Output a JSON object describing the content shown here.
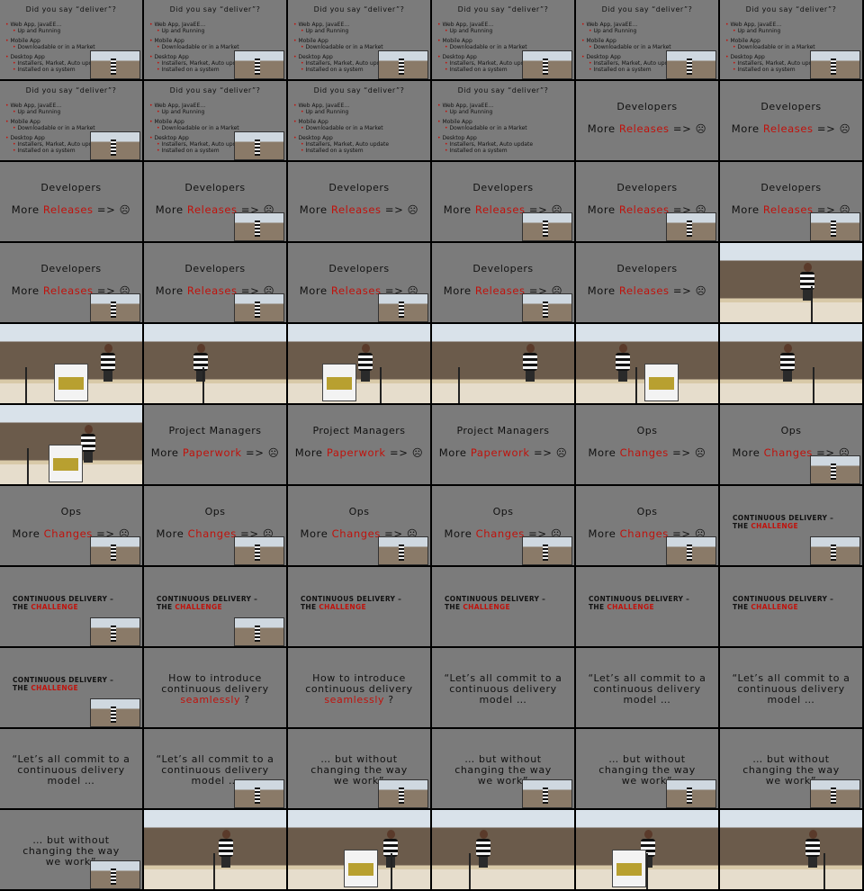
{
  "deliver": {
    "title": "Did you say “deliver”?",
    "items": [
      {
        "text": "Web App, JavaEE…",
        "level": "top"
      },
      {
        "text": "Up and Running",
        "level": "sub"
      },
      {
        "text": "Mobile App",
        "level": "top"
      },
      {
        "text": "Downloadable or in a Market",
        "level": "sub"
      },
      {
        "text": "Desktop App",
        "level": "top"
      },
      {
        "text": "Installers, Market, Auto update",
        "level": "sub"
      },
      {
        "text": "Installed on a system",
        "level": "sub"
      }
    ]
  },
  "developers": {
    "title": "Developers",
    "more": "More",
    "word": "Releases",
    "tail": "=> ☹"
  },
  "pm": {
    "title": "Project Managers",
    "more": "More",
    "word": "Paperwork",
    "tail": "=> ☹"
  },
  "ops": {
    "title": "Ops",
    "more": "More",
    "word": "Changes",
    "tail": "=> ☹"
  },
  "challenge": {
    "line1": "CONTINUOUS DELIVERY –",
    "line2a": "THE",
    "line2b": "CHALLENGE"
  },
  "introduce": {
    "l1": "How to introduce",
    "l2": "continuous delivery",
    "l3a": "seamlessly",
    "l3b": "?"
  },
  "commit": {
    "l1": "“Let’s all commit to a",
    "l2": "continuous delivery",
    "l3": "model …"
  },
  "without": {
    "l1": "… but without",
    "l2": "changing the way",
    "l3": "we work”"
  },
  "colors": {
    "slide_bg": "#7b7b7b",
    "accent": "#c0120c",
    "separator": "#000000"
  },
  "cells": [
    {
      "type": "deliver",
      "inset": true
    },
    {
      "type": "deliver",
      "inset": true
    },
    {
      "type": "deliver",
      "inset": true
    },
    {
      "type": "deliver",
      "inset": true
    },
    {
      "type": "deliver",
      "inset": true
    },
    {
      "type": "deliver",
      "inset": true
    },
    {
      "type": "deliver",
      "inset": true
    },
    {
      "type": "deliver",
      "inset": true
    },
    {
      "type": "deliver"
    },
    {
      "type": "deliver"
    },
    {
      "type": "developers"
    },
    {
      "type": "developers"
    },
    {
      "type": "developers"
    },
    {
      "type": "developers",
      "inset": true
    },
    {
      "type": "developers"
    },
    {
      "type": "developers",
      "inset": true
    },
    {
      "type": "developers",
      "inset": true
    },
    {
      "type": "developers",
      "inset": true
    },
    {
      "type": "developers",
      "inset": true
    },
    {
      "type": "developers",
      "inset": true
    },
    {
      "type": "developers",
      "inset": true
    },
    {
      "type": "developers",
      "inset": true
    },
    {
      "type": "developers"
    },
    {
      "type": "photo"
    },
    {
      "type": "photo"
    },
    {
      "type": "photo"
    },
    {
      "type": "photo"
    },
    {
      "type": "photo"
    },
    {
      "type": "photo"
    },
    {
      "type": "photo"
    },
    {
      "type": "photo"
    },
    {
      "type": "pm"
    },
    {
      "type": "pm"
    },
    {
      "type": "pm"
    },
    {
      "type": "ops"
    },
    {
      "type": "ops",
      "inset": true
    },
    {
      "type": "ops",
      "inset": true
    },
    {
      "type": "ops",
      "inset": true
    },
    {
      "type": "ops",
      "inset": true
    },
    {
      "type": "ops",
      "inset": true
    },
    {
      "type": "ops",
      "inset": true
    },
    {
      "type": "challenge",
      "inset": true
    },
    {
      "type": "challenge",
      "inset": true
    },
    {
      "type": "challenge",
      "inset": true
    },
    {
      "type": "challenge"
    },
    {
      "type": "challenge"
    },
    {
      "type": "challenge"
    },
    {
      "type": "challenge"
    },
    {
      "type": "challenge",
      "inset": true
    },
    {
      "type": "introduce"
    },
    {
      "type": "introduce"
    },
    {
      "type": "commit"
    },
    {
      "type": "commit"
    },
    {
      "type": "commit"
    },
    {
      "type": "commit"
    },
    {
      "type": "commit",
      "inset": true
    },
    {
      "type": "without",
      "inset": true
    },
    {
      "type": "without",
      "inset": true
    },
    {
      "type": "without",
      "inset": true
    },
    {
      "type": "without",
      "inset": true
    },
    {
      "type": "without",
      "inset": true
    },
    {
      "type": "photo"
    },
    {
      "type": "photo"
    },
    {
      "type": "photo"
    },
    {
      "type": "photo"
    },
    {
      "type": "photo"
    }
  ]
}
